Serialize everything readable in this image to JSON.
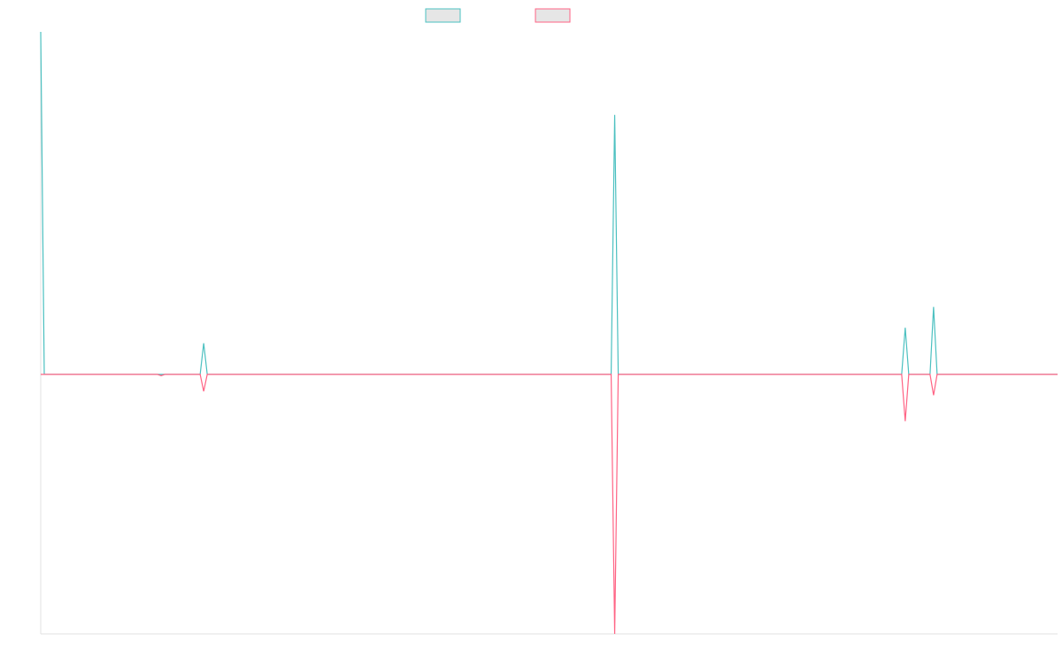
{
  "chart_data": {
    "type": "line",
    "x": [
      0,
      1,
      33,
      34,
      35,
      45,
      46,
      47,
      161,
      162,
      163,
      243,
      244,
      245,
      251,
      252,
      253,
      287
    ],
    "series": [
      {
        "color": "#4bc0c0",
        "values": [
          132,
          0,
          0,
          0,
          0,
          0,
          12,
          0,
          0,
          100,
          0,
          0,
          18,
          0,
          0,
          26,
          0,
          0
        ]
      },
      {
        "color": "#ff6384",
        "values": [
          0,
          0,
          0,
          -0.5,
          0,
          0,
          -6.5,
          0,
          0,
          -100,
          0,
          0,
          -18,
          0,
          0,
          -8,
          0,
          0
        ]
      }
    ],
    "xlim": [
      0,
      287
    ],
    "ylim": [
      -100,
      132
    ]
  }
}
